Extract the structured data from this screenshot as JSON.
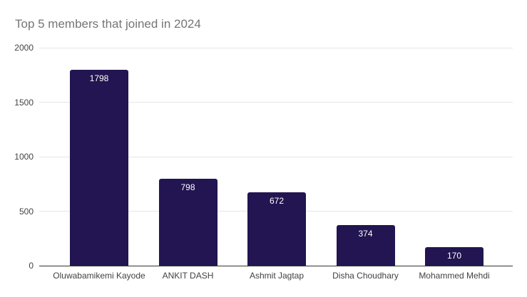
{
  "chart_data": {
    "type": "bar",
    "title": "Top 5 members that joined in 2024",
    "categories": [
      "Oluwabamikemi Kayode",
      "ANKIT DASH",
      "Ashmit Jagtap",
      "Disha Choudhary",
      "Mohammed Mehdi"
    ],
    "values": [
      1798,
      798,
      672,
      374,
      170
    ],
    "xlabel": "",
    "ylabel": "",
    "ylim": [
      0,
      2000
    ],
    "yticks": [
      0,
      500,
      1000,
      1500,
      2000
    ],
    "grid": true,
    "legend_position": "none",
    "colors": {
      "bar": "#221551",
      "bar_value_label": "#ffffff",
      "title": "#757575",
      "axis_label": "#424242",
      "gridline": "#e6e6e6",
      "baseline": "#333333",
      "background": "#ffffff"
    }
  }
}
